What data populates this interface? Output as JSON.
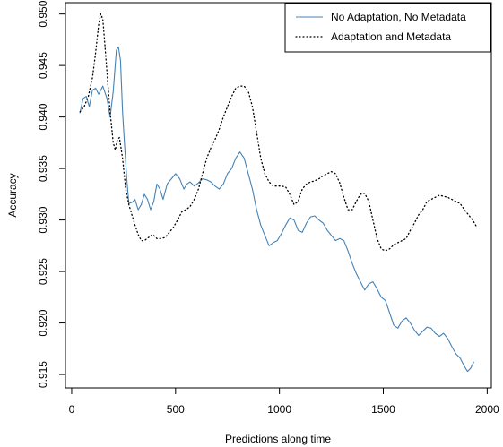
{
  "chart_data": {
    "type": "line",
    "xlabel": "Predictions along time",
    "ylabel": "Accuracy",
    "xlim": [
      -30,
      2020
    ],
    "ylim": [
      0.9137,
      0.9511
    ],
    "x_ticks": [
      0,
      500,
      1000,
      1500,
      2000
    ],
    "y_ticks": [
      0.915,
      0.92,
      0.925,
      0.93,
      0.935,
      0.94,
      0.945,
      0.95
    ],
    "grid": false,
    "legend_position": "top-right",
    "series": [
      {
        "name": "No Adaptation, No Metadata",
        "color": "#4682b4",
        "style": "solid",
        "points": [
          [
            40,
            0.9404
          ],
          [
            55,
            0.9418
          ],
          [
            70,
            0.942
          ],
          [
            85,
            0.941
          ],
          [
            100,
            0.9426
          ],
          [
            115,
            0.9428
          ],
          [
            130,
            0.9422
          ],
          [
            150,
            0.943
          ],
          [
            170,
            0.9418
          ],
          [
            185,
            0.94
          ],
          [
            200,
            0.9425
          ],
          [
            215,
            0.9465
          ],
          [
            225,
            0.9468
          ],
          [
            235,
            0.9455
          ],
          [
            245,
            0.9405
          ],
          [
            255,
            0.9372
          ],
          [
            265,
            0.934
          ],
          [
            275,
            0.9316
          ],
          [
            290,
            0.9317
          ],
          [
            305,
            0.932
          ],
          [
            320,
            0.931
          ],
          [
            335,
            0.9315
          ],
          [
            350,
            0.9325
          ],
          [
            365,
            0.932
          ],
          [
            380,
            0.931
          ],
          [
            395,
            0.9318
          ],
          [
            410,
            0.9335
          ],
          [
            425,
            0.933
          ],
          [
            440,
            0.932
          ],
          [
            460,
            0.9335
          ],
          [
            480,
            0.934
          ],
          [
            500,
            0.9345
          ],
          [
            520,
            0.934
          ],
          [
            540,
            0.933
          ],
          [
            555,
            0.9335
          ],
          [
            570,
            0.9337
          ],
          [
            590,
            0.9333
          ],
          [
            610,
            0.9336
          ],
          [
            630,
            0.934
          ],
          [
            650,
            0.9339
          ],
          [
            670,
            0.9337
          ],
          [
            690,
            0.9333
          ],
          [
            710,
            0.933
          ],
          [
            730,
            0.9335
          ],
          [
            750,
            0.9345
          ],
          [
            770,
            0.935
          ],
          [
            790,
            0.936
          ],
          [
            810,
            0.9366
          ],
          [
            830,
            0.936
          ],
          [
            850,
            0.9345
          ],
          [
            870,
            0.933
          ],
          [
            890,
            0.931
          ],
          [
            910,
            0.9295
          ],
          [
            930,
            0.9285
          ],
          [
            950,
            0.9275
          ],
          [
            970,
            0.9278
          ],
          [
            990,
            0.928
          ],
          [
            1010,
            0.9287
          ],
          [
            1030,
            0.9295
          ],
          [
            1050,
            0.9302
          ],
          [
            1070,
            0.93
          ],
          [
            1090,
            0.929
          ],
          [
            1110,
            0.9288
          ],
          [
            1130,
            0.9297
          ],
          [
            1150,
            0.9303
          ],
          [
            1170,
            0.9304
          ],
          [
            1190,
            0.93
          ],
          [
            1210,
            0.9297
          ],
          [
            1230,
            0.929
          ],
          [
            1250,
            0.9285
          ],
          [
            1270,
            0.928
          ],
          [
            1290,
            0.9282
          ],
          [
            1310,
            0.928
          ],
          [
            1330,
            0.927
          ],
          [
            1350,
            0.9258
          ],
          [
            1370,
            0.9248
          ],
          [
            1390,
            0.924
          ],
          [
            1410,
            0.9232
          ],
          [
            1430,
            0.9238
          ],
          [
            1450,
            0.924
          ],
          [
            1470,
            0.9233
          ],
          [
            1490,
            0.9225
          ],
          [
            1510,
            0.9222
          ],
          [
            1530,
            0.921
          ],
          [
            1550,
            0.9198
          ],
          [
            1570,
            0.9195
          ],
          [
            1590,
            0.9202
          ],
          [
            1610,
            0.9205
          ],
          [
            1630,
            0.92
          ],
          [
            1650,
            0.9193
          ],
          [
            1670,
            0.9188
          ],
          [
            1690,
            0.9192
          ],
          [
            1710,
            0.9196
          ],
          [
            1730,
            0.9195
          ],
          [
            1750,
            0.919
          ],
          [
            1770,
            0.9187
          ],
          [
            1790,
            0.919
          ],
          [
            1810,
            0.9185
          ],
          [
            1830,
            0.9177
          ],
          [
            1850,
            0.917
          ],
          [
            1870,
            0.9166
          ],
          [
            1890,
            0.9158
          ],
          [
            1905,
            0.9153
          ],
          [
            1920,
            0.9156
          ],
          [
            1935,
            0.9162
          ]
        ]
      },
      {
        "name": "Adaptation and Metadata",
        "color": "#000000",
        "style": "dotted",
        "points": [
          [
            40,
            0.9405
          ],
          [
            60,
            0.941
          ],
          [
            80,
            0.942
          ],
          [
            100,
            0.9438
          ],
          [
            115,
            0.9462
          ],
          [
            130,
            0.949
          ],
          [
            140,
            0.95
          ],
          [
            150,
            0.9495
          ],
          [
            160,
            0.947
          ],
          [
            175,
            0.943
          ],
          [
            185,
            0.9405
          ],
          [
            200,
            0.9375
          ],
          [
            210,
            0.9368
          ],
          [
            220,
            0.9378
          ],
          [
            230,
            0.938
          ],
          [
            245,
            0.936
          ],
          [
            260,
            0.933
          ],
          [
            275,
            0.9315
          ],
          [
            290,
            0.9305
          ],
          [
            305,
            0.9295
          ],
          [
            320,
            0.9286
          ],
          [
            335,
            0.928
          ],
          [
            350,
            0.928
          ],
          [
            370,
            0.9283
          ],
          [
            390,
            0.9286
          ],
          [
            410,
            0.9282
          ],
          [
            430,
            0.9282
          ],
          [
            450,
            0.9283
          ],
          [
            470,
            0.9288
          ],
          [
            490,
            0.9293
          ],
          [
            510,
            0.93
          ],
          [
            530,
            0.9308
          ],
          [
            550,
            0.931
          ],
          [
            570,
            0.9313
          ],
          [
            590,
            0.932
          ],
          [
            610,
            0.933
          ],
          [
            630,
            0.9345
          ],
          [
            650,
            0.936
          ],
          [
            670,
            0.937
          ],
          [
            690,
            0.9378
          ],
          [
            710,
            0.9388
          ],
          [
            730,
            0.94
          ],
          [
            750,
            0.941
          ],
          [
            770,
            0.942
          ],
          [
            790,
            0.9428
          ],
          [
            810,
            0.943
          ],
          [
            830,
            0.943
          ],
          [
            850,
            0.9425
          ],
          [
            870,
            0.941
          ],
          [
            890,
            0.9385
          ],
          [
            910,
            0.936
          ],
          [
            930,
            0.9345
          ],
          [
            950,
            0.9337
          ],
          [
            970,
            0.9333
          ],
          [
            990,
            0.9333
          ],
          [
            1010,
            0.9333
          ],
          [
            1030,
            0.9332
          ],
          [
            1050,
            0.9325
          ],
          [
            1070,
            0.9315
          ],
          [
            1090,
            0.9318
          ],
          [
            1110,
            0.933
          ],
          [
            1130,
            0.9335
          ],
          [
            1150,
            0.9337
          ],
          [
            1170,
            0.9338
          ],
          [
            1190,
            0.934
          ],
          [
            1210,
            0.9343
          ],
          [
            1230,
            0.9345
          ],
          [
            1250,
            0.9347
          ],
          [
            1270,
            0.9345
          ],
          [
            1290,
            0.9336
          ],
          [
            1310,
            0.9322
          ],
          [
            1330,
            0.931
          ],
          [
            1350,
            0.931
          ],
          [
            1370,
            0.9318
          ],
          [
            1390,
            0.9325
          ],
          [
            1410,
            0.9326
          ],
          [
            1430,
            0.9318
          ],
          [
            1450,
            0.93
          ],
          [
            1470,
            0.9282
          ],
          [
            1490,
            0.9272
          ],
          [
            1510,
            0.927
          ],
          [
            1530,
            0.9272
          ],
          [
            1550,
            0.9276
          ],
          [
            1570,
            0.9278
          ],
          [
            1590,
            0.928
          ],
          [
            1610,
            0.9282
          ],
          [
            1630,
            0.929
          ],
          [
            1650,
            0.9297
          ],
          [
            1670,
            0.9305
          ],
          [
            1690,
            0.931
          ],
          [
            1710,
            0.9318
          ],
          [
            1730,
            0.932
          ],
          [
            1750,
            0.9322
          ],
          [
            1770,
            0.9324
          ],
          [
            1790,
            0.9323
          ],
          [
            1810,
            0.9322
          ],
          [
            1830,
            0.932
          ],
          [
            1850,
            0.9318
          ],
          [
            1870,
            0.9316
          ],
          [
            1890,
            0.931
          ],
          [
            1910,
            0.9305
          ],
          [
            1930,
            0.93
          ],
          [
            1950,
            0.9293
          ]
        ]
      }
    ]
  }
}
